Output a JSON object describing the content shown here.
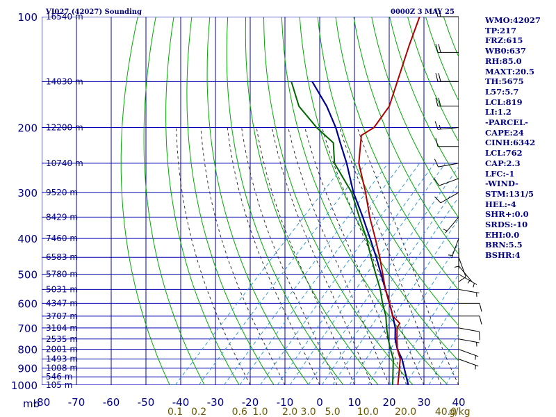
{
  "header": {
    "station": "VI027 (42027) Sounding",
    "datetime": "0000Z  3 MAY 25"
  },
  "stats": [
    "WMO:42027",
    "TP:217",
    "FRZ:615",
    "WB0:637",
    "RH:85.0",
    "MAXT:20.5",
    "TH:5675",
    "L57:5.7",
    "LCL:819",
    "LI:1.2",
    "-PARCEL-",
    "CAPE:24",
    "CINH:6342",
    "LCL:762",
    "CAP:2.3",
    "LFC:-1",
    "-WIND-",
    "STM:131/5",
    "HEL:-4",
    "SHR+:0.0",
    "SRDS:-10",
    "EHI:0.0",
    "BRN:5.5",
    "BSHR:4"
  ],
  "colors": {
    "isotherm": "#0000b0",
    "isobar": "#0000b0",
    "dry_adiabat": "#00aa00",
    "moist_adiabat": "#333333",
    "mixing_ratio": "#3399dd",
    "temperature": "#b00000",
    "dewpoint": "#006600",
    "parcel": "#000090",
    "wind": "#000000"
  },
  "chart_data": {
    "type": "skew-t",
    "pressure_levels": [
      100,
      200,
      300,
      400,
      500,
      600,
      700,
      800,
      900,
      1000
    ],
    "pressure_labels": [
      "100",
      "200",
      "300",
      "400",
      "500",
      "600",
      "700",
      "800",
      "900",
      "1000"
    ],
    "pressure_unit": "mb",
    "temperature_ticks": [
      -80,
      -70,
      -60,
      -50,
      -40,
      -30,
      -20,
      -10,
      0,
      10,
      20,
      30,
      40
    ],
    "temperature_labels": [
      "-80",
      "-70",
      "-60",
      "-50",
      "-40",
      "-30",
      "-20",
      "-10",
      "0",
      "10",
      "20",
      "30",
      "40"
    ],
    "xlim": [
      -80,
      40
    ],
    "ylim": [
      1000,
      100
    ],
    "y_scale": "log",
    "height_labels": [
      {
        "p": 100,
        "text": "16540 m"
      },
      {
        "p": 150,
        "text": "14030 m"
      },
      {
        "p": 200,
        "text": "12200 m"
      },
      {
        "p": 250,
        "text": "10740 m"
      },
      {
        "p": 300,
        "text": "9520 m"
      },
      {
        "p": 350,
        "text": "8429 m"
      },
      {
        "p": 400,
        "text": "7460 m"
      },
      {
        "p": 450,
        "text": "6583 m"
      },
      {
        "p": 500,
        "text": "5780 m"
      },
      {
        "p": 550,
        "text": "5031 m"
      },
      {
        "p": 600,
        "text": "4347 m"
      },
      {
        "p": 650,
        "text": "3707 m"
      },
      {
        "p": 700,
        "text": "3104 m"
      },
      {
        "p": 750,
        "text": "2535 m"
      },
      {
        "p": 800,
        "text": "2001 m"
      },
      {
        "p": 850,
        "text": "1493 m"
      },
      {
        "p": 900,
        "text": "1008 m"
      },
      {
        "p": 950,
        "text": "546 m"
      },
      {
        "p": 1000,
        "text": "105 m"
      }
    ],
    "mixing_ratio_labels": [
      {
        "w": 0.1,
        "text": "0.1"
      },
      {
        "w": 0.2,
        "text": "0.2"
      },
      {
        "w": 0.6,
        "text": "0.6"
      },
      {
        "w": 1.0,
        "text": "1.0"
      },
      {
        "w": 2.0,
        "text": "2.0"
      },
      {
        "w": 3.0,
        "text": "3.0"
      },
      {
        "w": 5.0,
        "text": "5.0"
      },
      {
        "w": 10.0,
        "text": "10.0"
      },
      {
        "w": 20.0,
        "text": "20.0"
      },
      {
        "w": 40.0,
        "text": "40.0"
      }
    ],
    "mixing_ratio_unit": "g/kg",
    "temperature_profile": [
      [
        1000,
        22.5
      ],
      [
        850,
        16.0
      ],
      [
        800,
        12.5
      ],
      [
        750,
        9.5
      ],
      [
        700,
        6.5
      ],
      [
        680,
        6.0
      ],
      [
        650,
        2.0
      ],
      [
        600,
        -2.5
      ],
      [
        550,
        -7.5
      ],
      [
        500,
        -12.5
      ],
      [
        450,
        -18.0
      ],
      [
        400,
        -24.5
      ],
      [
        350,
        -32.0
      ],
      [
        300,
        -40.0
      ],
      [
        250,
        -50.0
      ],
      [
        210,
        -57.0
      ],
      [
        200,
        -55.5
      ],
      [
        175,
        -57.0
      ],
      [
        150,
        -61.5
      ],
      [
        120,
        -68.0
      ],
      [
        100,
        -73.0
      ]
    ],
    "dewpoint_profile": [
      [
        1000,
        21.0
      ],
      [
        850,
        14.0
      ],
      [
        800,
        10.5
      ],
      [
        750,
        7.0
      ],
      [
        700,
        3.5
      ],
      [
        650,
        0.0
      ],
      [
        600,
        -4.5
      ],
      [
        550,
        -9.0
      ],
      [
        500,
        -14.5
      ],
      [
        450,
        -20.5
      ],
      [
        400,
        -27.0
      ],
      [
        350,
        -35.0
      ],
      [
        300,
        -44.0
      ],
      [
        250,
        -57.0
      ],
      [
        220,
        -63.0
      ],
      [
        200,
        -72.0
      ],
      [
        175,
        -83.0
      ],
      [
        150,
        -92.0
      ]
    ],
    "parcel_profile": [
      [
        1000,
        25.5
      ],
      [
        850,
        16.5
      ],
      [
        800,
        12.5
      ],
      [
        750,
        9.0
      ],
      [
        700,
        6.0
      ],
      [
        650,
        2.0
      ],
      [
        600,
        -2.5
      ],
      [
        550,
        -7.5
      ],
      [
        500,
        -13.0
      ],
      [
        450,
        -19.0
      ],
      [
        400,
        -26.0
      ],
      [
        350,
        -34.0
      ],
      [
        300,
        -43.5
      ],
      [
        250,
        -53.5
      ],
      [
        220,
        -61.0
      ],
      [
        200,
        -66.5
      ],
      [
        175,
        -75.0
      ],
      [
        150,
        -86.0
      ]
    ],
    "wind_barbs": [
      {
        "p": 100,
        "dir": 270,
        "spd": 20
      },
      {
        "p": 125,
        "dir": 270,
        "spd": 20
      },
      {
        "p": 150,
        "dir": 270,
        "spd": 20
      },
      {
        "p": 175,
        "dir": 270,
        "spd": 20
      },
      {
        "p": 200,
        "dir": 265,
        "spd": 15
      },
      {
        "p": 225,
        "dir": 270,
        "spd": 10
      },
      {
        "p": 250,
        "dir": 260,
        "spd": 10
      },
      {
        "p": 275,
        "dir": 250,
        "spd": 10
      },
      {
        "p": 300,
        "dir": 240,
        "spd": 10
      },
      {
        "p": 350,
        "dir": 220,
        "spd": 5
      },
      {
        "p": 400,
        "dir": 200,
        "spd": 5
      },
      {
        "p": 425,
        "dir": 180,
        "spd": 5
      },
      {
        "p": 450,
        "dir": 160,
        "spd": 10
      },
      {
        "p": 475,
        "dir": 140,
        "spd": 5
      },
      {
        "p": 500,
        "dir": 120,
        "spd": 5
      },
      {
        "p": 550,
        "dir": 100,
        "spd": 5
      },
      {
        "p": 600,
        "dir": 90,
        "spd": 10
      },
      {
        "p": 650,
        "dir": 90,
        "spd": 10
      },
      {
        "p": 700,
        "dir": 100,
        "spd": 10
      },
      {
        "p": 750,
        "dir": 100,
        "spd": 5
      },
      {
        "p": 800,
        "dir": 110,
        "spd": 5
      },
      {
        "p": 850,
        "dir": 110,
        "spd": 5
      }
    ]
  }
}
